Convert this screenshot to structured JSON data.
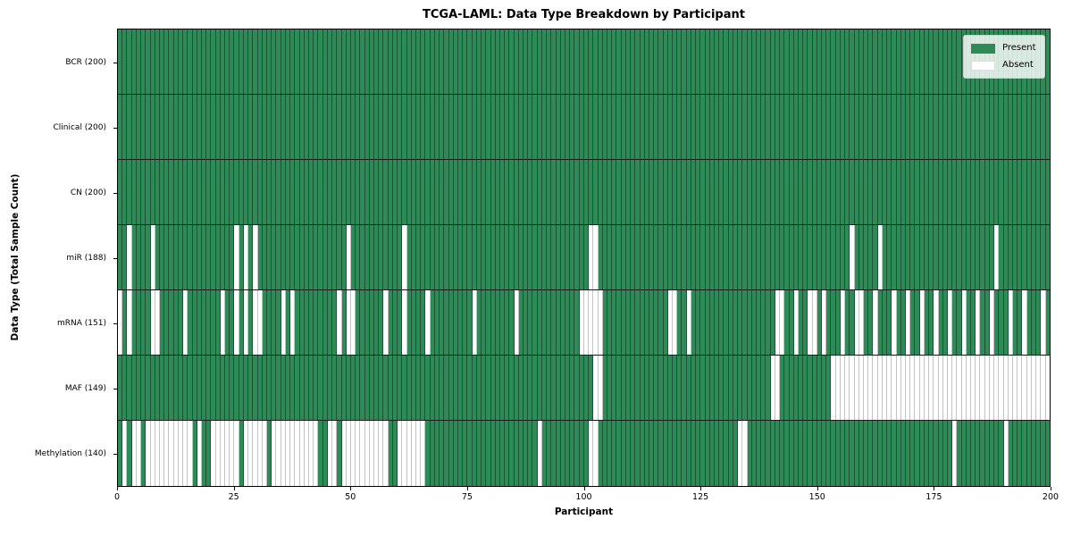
{
  "chart_data": {
    "type": "heatmap",
    "title": "TCGA-LAML: Data Type Breakdown by Participant",
    "xlabel": "Participant",
    "ylabel": "Data Type (Total Sample Count)",
    "n_participants": 200,
    "x_range": [
      0,
      200
    ],
    "x_ticks": [
      0,
      25,
      50,
      75,
      100,
      125,
      150,
      175,
      200
    ],
    "grid": "per-cell edges",
    "legend_position": "upper right",
    "legend": [
      {
        "label": "Present",
        "color": "#2e8b57"
      },
      {
        "label": "Absent",
        "color": "#ffffff"
      }
    ],
    "colors": {
      "present": "#2e8b57",
      "absent": "#ffffff"
    },
    "rows": [
      {
        "label": "BCR (200)",
        "data_type": "BCR",
        "present_count": 200,
        "absent_participants": []
      },
      {
        "label": "Clinical (200)",
        "data_type": "Clinical",
        "present_count": 200,
        "absent_participants": []
      },
      {
        "label": "CN (200)",
        "data_type": "CN",
        "present_count": 200,
        "absent_participants": []
      },
      {
        "label": "miR (188)",
        "data_type": "miR",
        "present_count": 188,
        "absent_participants": [
          2,
          7,
          25,
          27,
          29,
          49,
          61,
          101,
          102,
          157,
          163,
          188
        ]
      },
      {
        "label": "mRNA (151)",
        "data_type": "mRNA",
        "present_count": 151,
        "absent_participants": [
          0,
          2,
          7,
          8,
          14,
          22,
          25,
          27,
          29,
          30,
          35,
          37,
          47,
          49,
          50,
          57,
          61,
          66,
          76,
          85,
          99,
          100,
          101,
          102,
          103,
          118,
          119,
          122,
          141,
          142,
          145,
          148,
          149,
          151,
          155,
          158,
          159,
          162,
          166,
          169,
          172,
          175,
          178,
          181,
          184,
          187,
          191,
          194,
          198
        ]
      },
      {
        "label": "MAF (149)",
        "data_type": "MAF",
        "present_count": 149,
        "absent_participants": [
          102,
          103,
          140,
          141,
          153,
          154,
          155,
          156,
          157,
          158,
          159,
          160,
          161,
          162,
          163,
          164,
          165,
          166,
          167,
          168,
          169,
          170,
          171,
          172,
          173,
          174,
          175,
          176,
          177,
          178,
          179,
          180,
          181,
          182,
          183,
          184,
          185,
          186,
          187,
          188,
          189,
          190,
          191,
          192,
          193,
          194,
          195,
          196,
          197,
          198,
          199
        ]
      },
      {
        "label": "Methylation (140)",
        "data_type": "Methylation",
        "present_count": 140,
        "absent_participants": [
          1,
          3,
          4,
          6,
          7,
          8,
          9,
          10,
          11,
          12,
          13,
          14,
          15,
          17,
          20,
          21,
          22,
          23,
          24,
          25,
          27,
          28,
          29,
          30,
          31,
          33,
          34,
          35,
          36,
          37,
          38,
          39,
          40,
          41,
          42,
          45,
          46,
          48,
          49,
          50,
          51,
          52,
          53,
          54,
          55,
          56,
          57,
          60,
          61,
          62,
          63,
          64,
          65,
          90,
          101,
          102,
          133,
          134,
          179,
          190
        ]
      }
    ]
  }
}
